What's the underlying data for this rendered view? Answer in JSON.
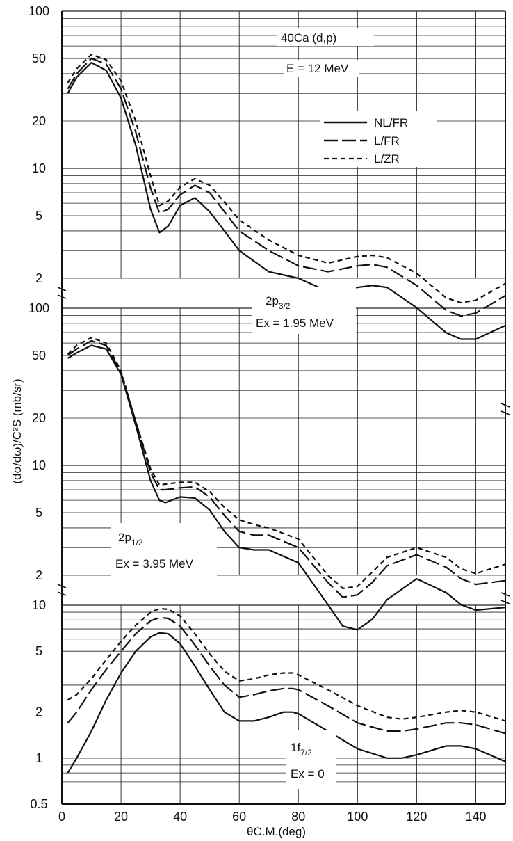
{
  "chart_data": {
    "type": "line",
    "title": "40Ca (d,p)",
    "subtitle": "E = 12 MeV",
    "xlabel": "θC.M.(deg)",
    "ylabel": "(dσ/dω)/C²S (mb/sr)",
    "xlim": [
      0,
      150
    ],
    "x_ticks": [
      0,
      20,
      40,
      60,
      80,
      100,
      120,
      140
    ],
    "y_scale": "log",
    "grid": true,
    "legend_position": "top-right",
    "legend": [
      {
        "name": "NL/FR",
        "style": "solid"
      },
      {
        "name": "L/FR",
        "style": "long-dash"
      },
      {
        "name": "L/ZR",
        "style": "short-dash"
      }
    ],
    "panels": [
      {
        "id": "2p3/2",
        "label_main": "2p",
        "label_sub": "3/2",
        "label_ex": "Ex = 1.95 MeV",
        "ylim": [
          2,
          100
        ],
        "y_ticks": [
          "100",
          "50",
          "20",
          "10",
          "5",
          "2"
        ],
        "series": [
          {
            "name": "NL/FR",
            "x": [
              2,
              5,
              10,
              15,
              20,
              25,
              30,
              33,
              36,
              40,
              45,
              50,
              55,
              60,
              70,
              80,
              90,
              100,
              105,
              110,
              120,
              130,
              135,
              140,
              150
            ],
            "y": [
              30,
              38,
              47,
              42,
              28,
              14,
              5.5,
              3.9,
              4.3,
              5.8,
              6.5,
              5.3,
              4.0,
              3.0,
              2.2,
              2.0,
              1.65,
              1.75,
              1.8,
              1.75,
              1.3,
              0.9,
              0.82,
              0.82,
              1.0
            ]
          },
          {
            "name": "L/FR",
            "x": [
              2,
              5,
              10,
              15,
              20,
              25,
              30,
              33,
              36,
              40,
              45,
              50,
              55,
              60,
              70,
              80,
              90,
              100,
              105,
              110,
              120,
              130,
              135,
              140,
              150
            ],
            "y": [
              32,
              40,
              50,
              46,
              32,
              17,
              7.5,
              5.2,
              5.5,
              6.8,
              7.8,
              7.0,
              5.3,
              4.0,
              3.0,
              2.4,
              2.2,
              2.4,
              2.45,
              2.35,
              1.8,
              1.25,
              1.15,
              1.2,
              1.55
            ]
          },
          {
            "name": "L/ZR",
            "x": [
              2,
              5,
              10,
              15,
              20,
              25,
              30,
              33,
              36,
              40,
              45,
              50,
              55,
              60,
              70,
              80,
              90,
              100,
              105,
              110,
              120,
              130,
              135,
              140,
              150
            ],
            "y": [
              35,
              43,
              53,
              49,
              36,
              20,
              9,
              5.8,
              6.2,
              7.6,
              8.6,
              7.8,
              6.1,
              4.7,
              3.5,
              2.8,
              2.5,
              2.75,
              2.8,
              2.7,
              2.15,
              1.5,
              1.4,
              1.45,
              1.85
            ]
          }
        ]
      },
      {
        "id": "2p1/2",
        "label_main": "2p",
        "label_sub": "1/2",
        "label_ex": "Ex = 3.95 MeV",
        "ylim": [
          2,
          100
        ],
        "y_ticks": [
          "100",
          "50",
          "20",
          "10",
          "5",
          "2"
        ],
        "series": [
          {
            "name": "NL/FR",
            "x": [
              2,
              5,
              10,
              15,
              20,
              25,
              30,
              33,
              35,
              40,
              45,
              50,
              55,
              60,
              65,
              70,
              80,
              90,
              95,
              100,
              105,
              110,
              120,
              130,
              135,
              140,
              150
            ],
            "y": [
              48,
              52,
              58,
              55,
              38,
              18,
              8,
              6.0,
              5.8,
              6.3,
              6.2,
              5.2,
              3.8,
              3.0,
              2.9,
              2.9,
              2.4,
              1.3,
              0.95,
              0.9,
              1.05,
              1.4,
              1.9,
              1.55,
              1.3,
              1.2,
              1.25
            ]
          },
          {
            "name": "L/FR",
            "x": [
              2,
              5,
              10,
              15,
              20,
              25,
              30,
              33,
              35,
              40,
              45,
              50,
              55,
              60,
              65,
              70,
              80,
              90,
              95,
              100,
              105,
              110,
              120,
              130,
              135,
              140,
              150
            ],
            "y": [
              50,
              55,
              62,
              58,
              39,
              19,
              9,
              7.0,
              7.0,
              7.2,
              7.3,
              6.3,
              4.8,
              3.8,
              3.6,
              3.6,
              3.0,
              1.8,
              1.45,
              1.5,
              1.8,
              2.3,
              2.7,
              2.25,
              1.9,
              1.75,
              1.85
            ]
          },
          {
            "name": "L/ZR",
            "x": [
              2,
              5,
              10,
              15,
              20,
              25,
              30,
              33,
              35,
              40,
              45,
              50,
              55,
              60,
              65,
              70,
              80,
              90,
              95,
              100,
              105,
              110,
              120,
              130,
              135,
              140,
              150
            ],
            "y": [
              51,
              58,
              65,
              60,
              40,
              19,
              9.5,
              7.5,
              7.6,
              7.8,
              7.8,
              6.8,
              5.4,
              4.5,
              4.2,
              4.0,
              3.4,
              2.0,
              1.65,
              1.7,
              2.1,
              2.6,
              3.0,
              2.6,
              2.2,
              2.05,
              2.35
            ]
          }
        ]
      },
      {
        "id": "1f7/2",
        "label_main": "1f",
        "label_sub": "7/2",
        "label_ex": "Ex = 0",
        "ylim": [
          0.5,
          10
        ],
        "y_ticks": [
          "10",
          "5",
          "2",
          "1",
          "0.5"
        ],
        "series": [
          {
            "name": "NL/FR",
            "x": [
              2,
              5,
              10,
              15,
              20,
              25,
              30,
              33,
              36,
              40,
              45,
              50,
              55,
              60,
              65,
              70,
              75,
              78,
              80,
              90,
              100,
              110,
              115,
              120,
              130,
              135,
              140,
              150
            ],
            "y": [
              0.8,
              1.0,
              1.5,
              2.4,
              3.6,
              5.0,
              6.2,
              6.6,
              6.5,
              5.6,
              4.0,
              2.8,
              2.0,
              1.75,
              1.75,
              1.85,
              2.0,
              2.0,
              1.95,
              1.5,
              1.15,
              1.0,
              1.0,
              1.05,
              1.2,
              1.2,
              1.15,
              0.95
            ]
          },
          {
            "name": "L/FR",
            "x": [
              2,
              5,
              10,
              15,
              20,
              25,
              30,
              33,
              36,
              40,
              45,
              50,
              55,
              60,
              65,
              70,
              75,
              78,
              80,
              90,
              100,
              110,
              115,
              120,
              130,
              135,
              140,
              150
            ],
            "y": [
              1.7,
              2.0,
              2.8,
              3.8,
              5.0,
              6.5,
              7.9,
              8.3,
              8.2,
              7.3,
              5.5,
              4.0,
              3.0,
              2.5,
              2.6,
              2.75,
              2.85,
              2.85,
              2.8,
              2.2,
              1.7,
              1.5,
              1.5,
              1.55,
              1.7,
              1.7,
              1.65,
              1.45
            ]
          },
          {
            "name": "L/ZR",
            "x": [
              2,
              5,
              10,
              15,
              20,
              25,
              30,
              33,
              36,
              40,
              45,
              50,
              55,
              60,
              65,
              70,
              75,
              78,
              80,
              90,
              100,
              110,
              115,
              120,
              130,
              135,
              140,
              150
            ],
            "y": [
              2.4,
              2.6,
              3.3,
              4.4,
              5.8,
              7.4,
              9.0,
              9.5,
              9.4,
              8.5,
              6.5,
              4.8,
              3.7,
              3.2,
              3.3,
              3.5,
              3.6,
              3.6,
              3.5,
              2.8,
              2.2,
              1.85,
              1.8,
              1.85,
              2.0,
              2.05,
              2.0,
              1.75
            ]
          }
        ]
      }
    ]
  }
}
